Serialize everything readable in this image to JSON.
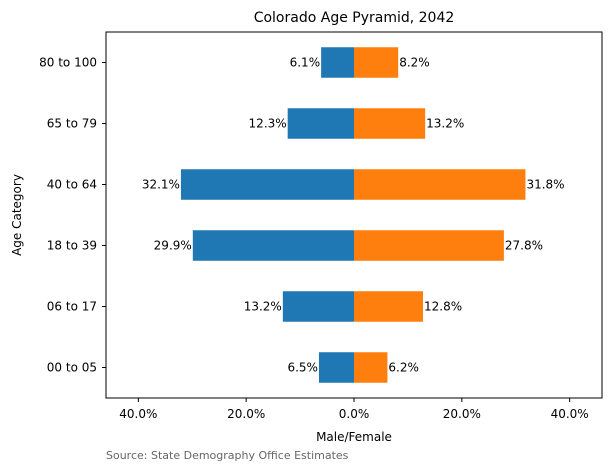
{
  "chart_data": {
    "type": "bar",
    "orientation": "horizontal",
    "title": "Colorado Age Pyramid, 2042",
    "xlabel": "Male/Female",
    "ylabel": "Age Category",
    "categories": [
      "00 to 05",
      "06 to 17",
      "18 to 39",
      "40 to 64",
      "65 to 79",
      "80 to 100"
    ],
    "series": [
      {
        "color": "#1f77b4",
        "values": [
          -6.5,
          -13.2,
          -29.9,
          -32.1,
          -12.3,
          -6.1
        ],
        "labels": [
          "6.5%",
          "13.2%",
          "29.9%",
          "32.1%",
          "12.3%",
          "6.1%"
        ]
      },
      {
        "color": "#ff7f0e",
        "values": [
          6.2,
          12.8,
          27.8,
          31.8,
          13.2,
          8.2
        ],
        "labels": [
          "6.2%",
          "12.8%",
          "27.8%",
          "31.8%",
          "13.2%",
          "8.2%"
        ]
      }
    ],
    "xlim": [
      -46,
      46
    ],
    "xticks": [
      -40,
      -20,
      0,
      20,
      40
    ],
    "xtick_labels": [
      "40.0%",
      "20.0%",
      "0.0%",
      "20.0%",
      "40.0%"
    ],
    "grid": false,
    "source_note": "Source: State Demography Office Estimates"
  }
}
